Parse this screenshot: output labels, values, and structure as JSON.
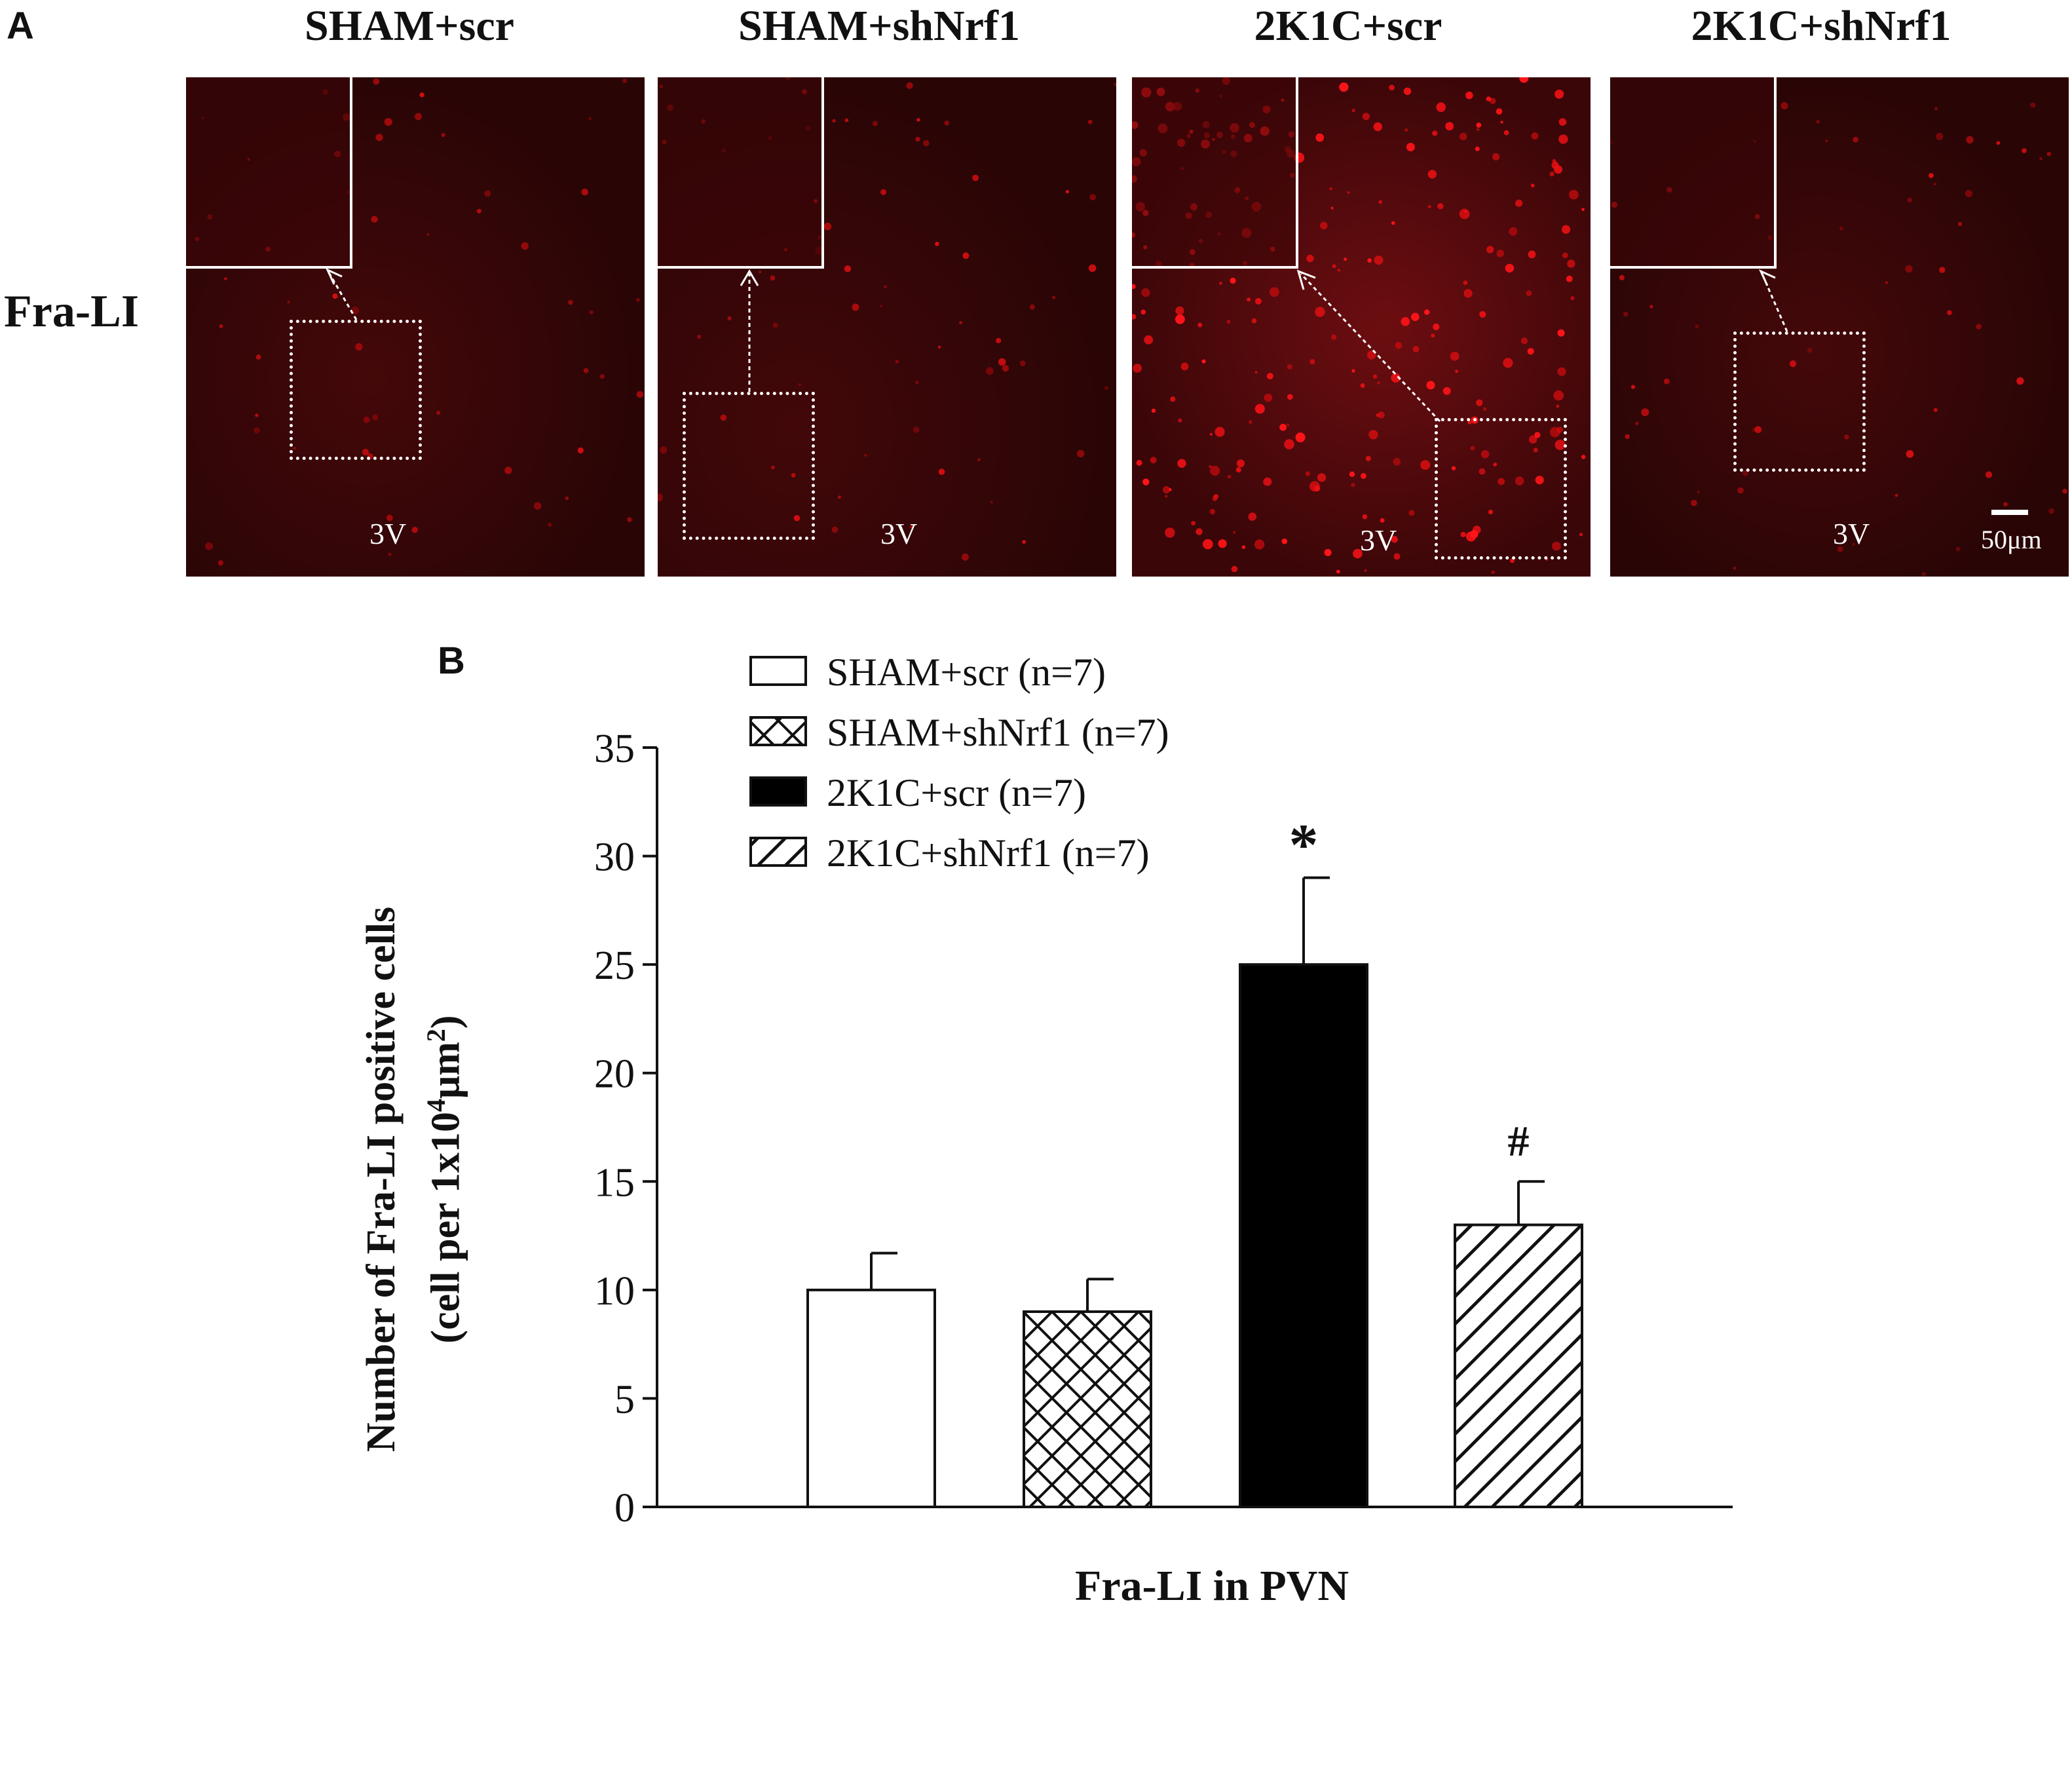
{
  "panel_a": {
    "letter": "A",
    "row_label": "Fra-LI",
    "columns": [
      "SHAM+scr",
      "SHAM+shNrf1",
      "2K1C+scr",
      "2K1C+shNrf1"
    ],
    "region_label": "3V",
    "scale_bar_label": "50μm"
  },
  "panel_b": {
    "letter": "B"
  },
  "chart_data": {
    "type": "bar",
    "title": "",
    "xlabel": "Fra-LI in PVN",
    "ylabel_line1": "Number of Fra-LI positive cells",
    "ylabel_line2_prefix": "(cell per 1x10",
    "ylabel_line2_sup": "4",
    "ylabel_line2_mid": "μm",
    "ylabel_line2_sup2": "2",
    "ylabel_line2_suffix": ")",
    "ylim": [
      0,
      35
    ],
    "yticks": [
      "0",
      "5",
      "10",
      "15",
      "20",
      "25",
      "30",
      "35"
    ],
    "legend_position": "top-left",
    "grid": false,
    "categories": [
      "SHAM+scr (n=7)",
      "SHAM+shNrf1 (n=7)",
      "2K1C+scr (n=7)",
      "2K1C+shNrf1 (n=7)"
    ],
    "series": [
      {
        "name": "SHAM+scr (n=7)",
        "value": 10,
        "error": 1.7,
        "pattern": "white",
        "annotation": ""
      },
      {
        "name": "SHAM+shNrf1 (n=7)",
        "value": 9,
        "error": 1.5,
        "pattern": "crosshatch",
        "annotation": ""
      },
      {
        "name": "2K1C+scr (n=7)",
        "value": 25,
        "error": 4,
        "pattern": "black",
        "annotation": "*"
      },
      {
        "name": "2K1C+shNrf1 (n=7)",
        "value": 13,
        "error": 2,
        "pattern": "diagonal",
        "annotation": "#"
      }
    ]
  }
}
